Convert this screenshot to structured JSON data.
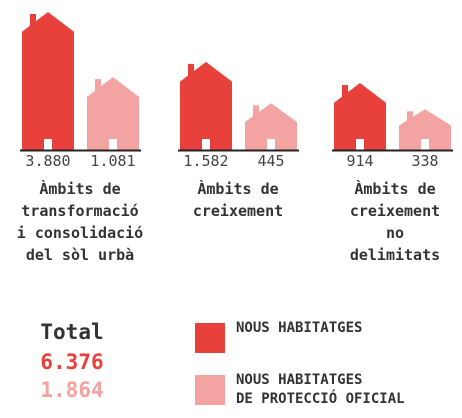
{
  "chart_data": {
    "type": "house",
    "categories": [
      "Àmbits de\ntransformació\ni consolidació\ndel sòl urbà",
      "Àmbits de\ncreixement",
      "Àmbits de\ncreixement\nno delimitats"
    ],
    "series": [
      {
        "name": "NOUS HABITATGES",
        "color": "#e8413b",
        "values": [
          3880,
          1582,
          914
        ],
        "value_labels": [
          "3.880",
          "1.582",
          "914"
        ]
      },
      {
        "name": "NOUS HABITATGES\nDE PROTECCIÓ OFICIAL",
        "color": "#f3a3a1",
        "values": [
          1081,
          445,
          338
        ],
        "value_labels": [
          "1.081",
          "445",
          "338"
        ]
      }
    ],
    "ylim": [
      0,
      3880
    ],
    "scale": "sqrt",
    "totals": {
      "label": "Total",
      "values": [
        6376,
        1864
      ],
      "value_labels": [
        "6.376",
        "1.864"
      ]
    }
  }
}
